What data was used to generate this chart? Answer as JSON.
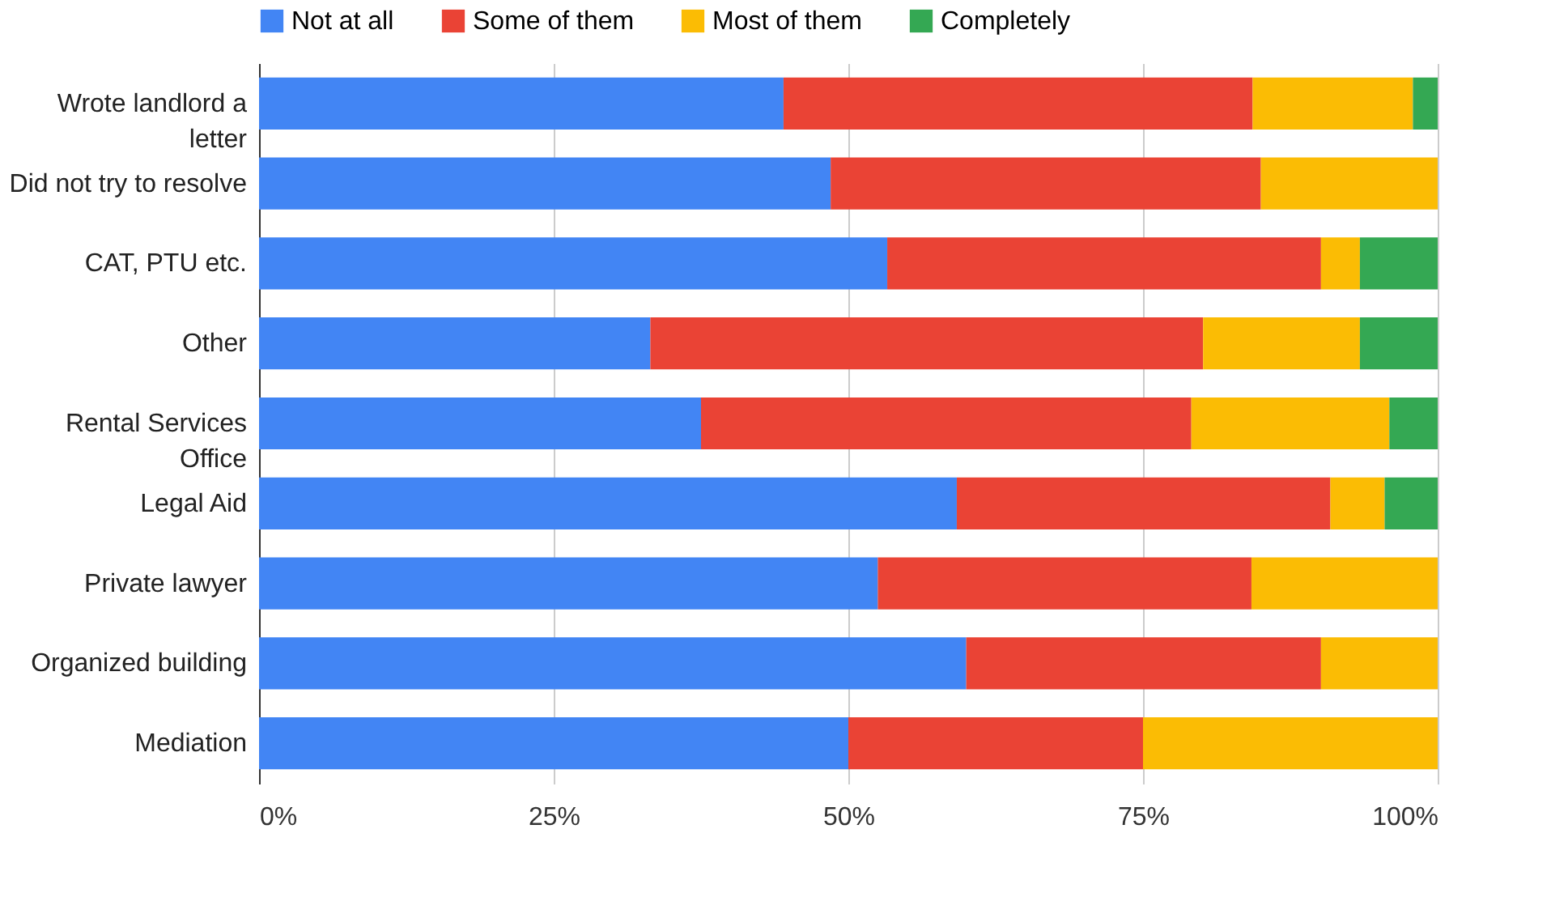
{
  "chart_data": {
    "type": "bar",
    "orientation": "horizontal",
    "stacked": true,
    "categories": [
      "Wrote landlord a\nletter",
      "Did not try to resolve",
      "CAT, PTU etc.",
      "Other",
      "Rental Services\nOffice",
      "Legal Aid",
      "Private lawyer",
      "Organized building",
      "Mediation"
    ],
    "series": [
      {
        "name": "Not at all",
        "color": "#4285f4",
        "values": [
          44.5,
          48.5,
          53.3,
          33.2,
          37.5,
          59.2,
          52.5,
          60.0,
          50
        ]
      },
      {
        "name": "Some of them",
        "color": "#ea4335",
        "values": [
          39.8,
          36.5,
          36.8,
          46.9,
          41.6,
          31.7,
          31.7,
          30.1,
          25
        ]
      },
      {
        "name": "Most of them",
        "color": "#fbbc04",
        "values": [
          13.6,
          15.0,
          3.3,
          13.3,
          16.8,
          4.6,
          15.8,
          9.9,
          25
        ]
      },
      {
        "name": "Completely",
        "color": "#34a853",
        "values": [
          2.1,
          null,
          6.6,
          6.6,
          4.1,
          4.5,
          null,
          null,
          null
        ]
      }
    ],
    "xlim": [
      0,
      100
    ],
    "xticks": [
      {
        "value": 0,
        "label": "0%"
      },
      {
        "value": 25,
        "label": "25%"
      },
      {
        "value": 50,
        "label": "50%"
      },
      {
        "value": 75,
        "label": "75%"
      },
      {
        "value": 100,
        "label": "100%"
      }
    ],
    "grid": "x",
    "legend": "top"
  }
}
